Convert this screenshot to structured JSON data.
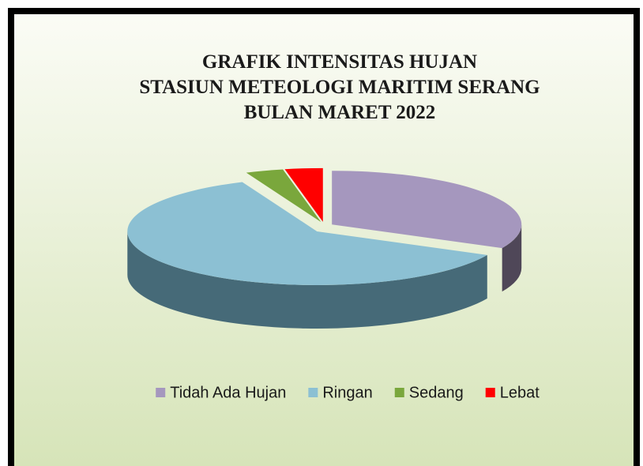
{
  "chart_data": {
    "type": "pie3d",
    "title": [
      "GRAFIK INTENSITAS HUJAN",
      "STASIUN METEOLOGI MARITIM  SERANG",
      "BULAN MARET 2022"
    ],
    "categories": [
      "Tidah Ada Hujan",
      "Ringan",
      "Sedang",
      "Lebat"
    ],
    "values": [
      10,
      19,
      1,
      1
    ],
    "colors": [
      "#a597be",
      "#8cc0d3",
      "#7aa73c",
      "#ff0000"
    ],
    "side_colors": [
      "#4f4758",
      "#466a78",
      "#3f5a1c",
      "#8a0000"
    ],
    "legend": "bottom"
  }
}
